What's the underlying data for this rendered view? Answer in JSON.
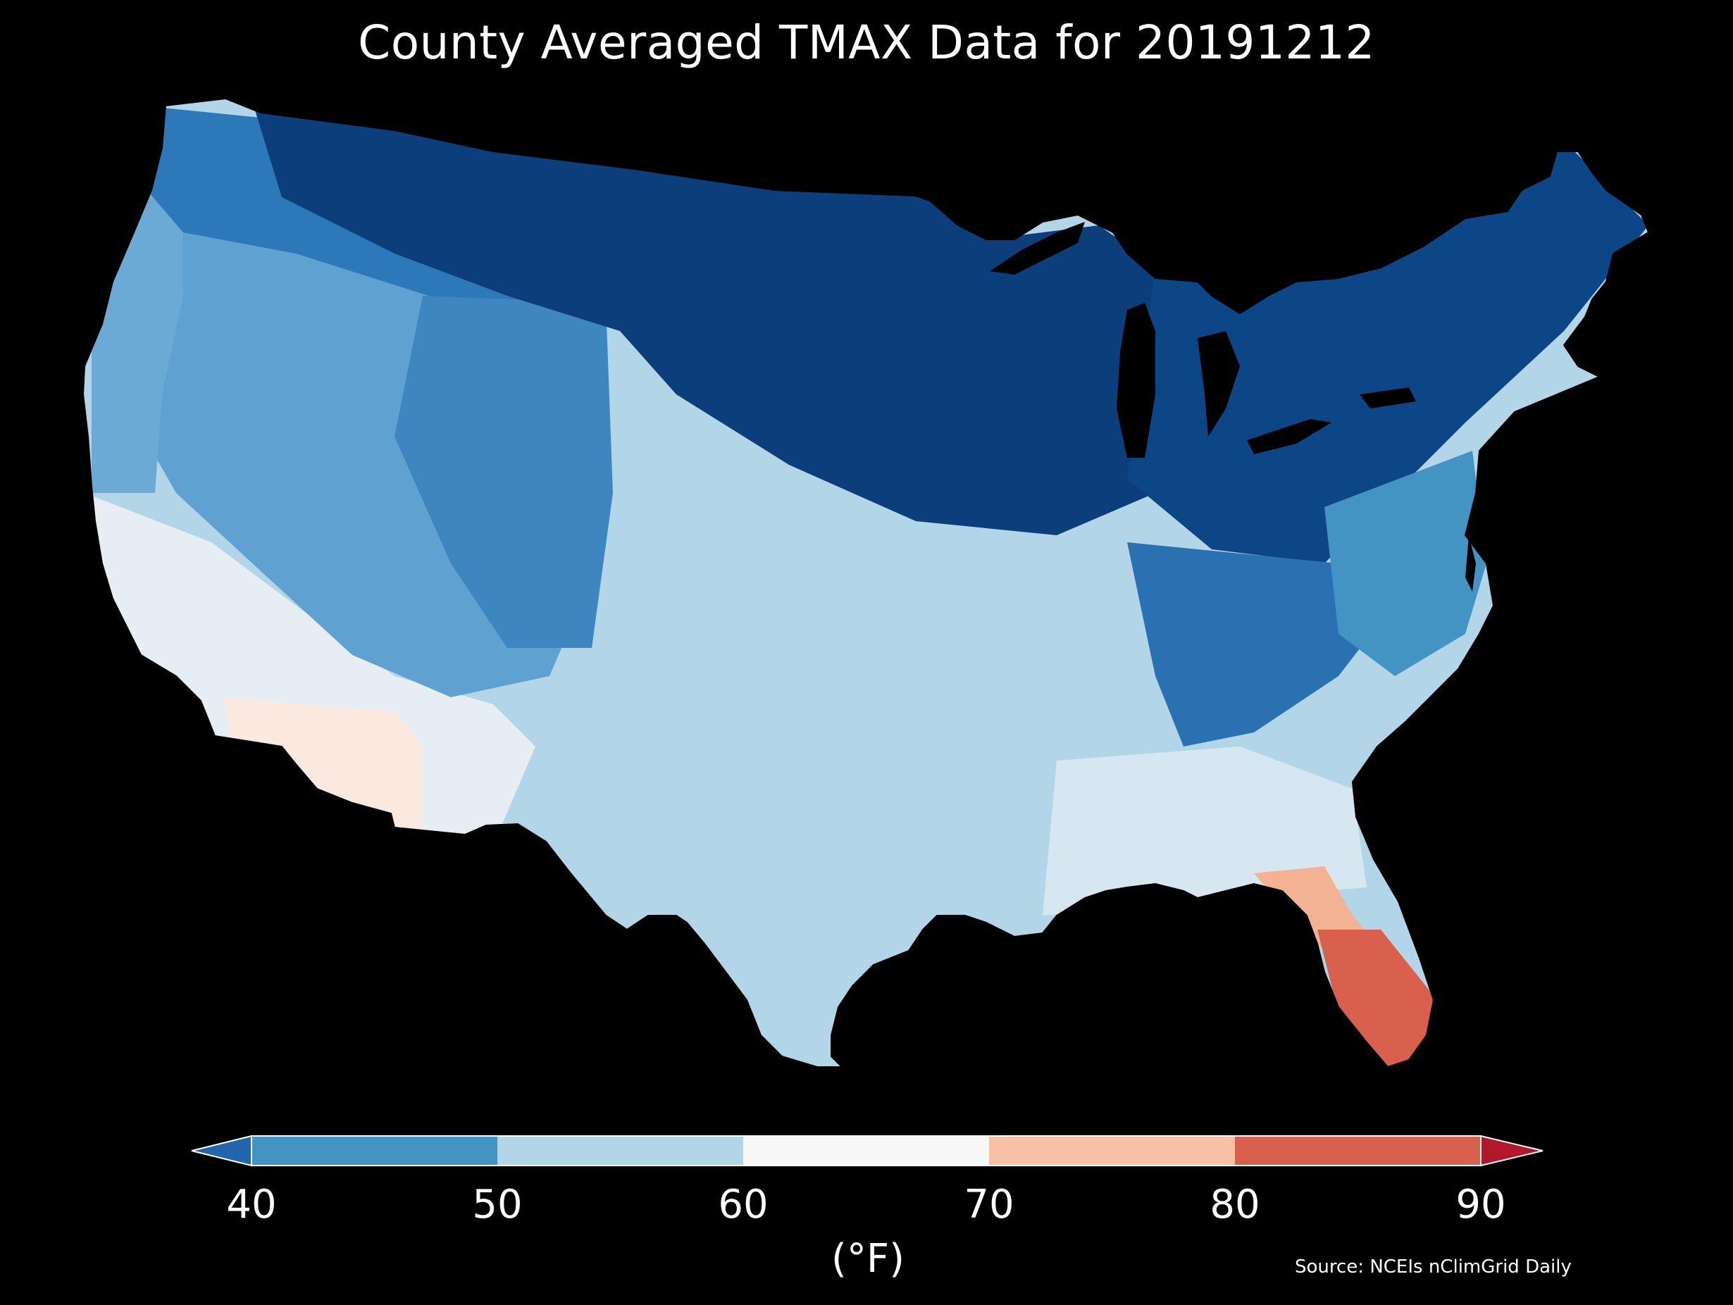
{
  "title": "County Averaged TMAX Data for 20191212",
  "colorbar": {
    "ticks": [
      "40",
      "50",
      "60",
      "70",
      "80",
      "90"
    ],
    "bins": [
      {
        "from": 40,
        "to": 50,
        "color": "#4393c3"
      },
      {
        "from": 50,
        "to": 60,
        "color": "#b3d5e8"
      },
      {
        "from": 60,
        "to": 70,
        "color": "#f7f7f7"
      },
      {
        "from": 70,
        "to": 80,
        "color": "#f8c1a6"
      },
      {
        "from": 80,
        "to": 90,
        "color": "#d8604d"
      }
    ],
    "under_color": "#2166ac",
    "over_color": "#b2182b",
    "unit_label": "(°F)"
  },
  "source": "Source: NCEIs nClimGrid Daily",
  "map": {
    "region": "Contiguous United States",
    "variable": "TMAX",
    "date": "20191212",
    "regional_colors": {
      "north_central": "#0b3e7a",
      "great_lakes": "#0d4686",
      "northwest": "#2c78b8",
      "pacific_coast": "#6aaad5",
      "great_basin": "#5fa2d2",
      "central_plains": "#b3d5e8",
      "southeast": "#d7e7f1",
      "southwest": "#e6eef4",
      "arizona": "#fbe9e0",
      "florida_north": "#f4b295",
      "florida_south": "#d8604d"
    }
  }
}
